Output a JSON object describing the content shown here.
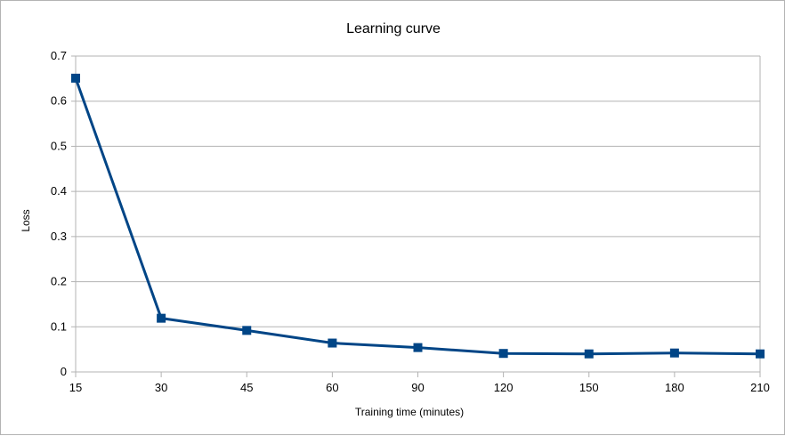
{
  "chart_data": {
    "type": "line",
    "title": "Learning curve",
    "xlabel": "Training time (minutes)",
    "ylabel": "Loss",
    "categories": [
      "15",
      "30",
      "45",
      "60",
      "90",
      "120",
      "150",
      "180",
      "210"
    ],
    "series": [
      {
        "values": [
          0.651,
          0.119,
          0.092,
          0.064,
          0.054,
          0.041,
          0.04,
          0.042,
          0.04
        ],
        "color": "#004586",
        "marker": "square"
      }
    ],
    "ylim": [
      0,
      0.7
    ],
    "yticks": [
      "0",
      "0.1",
      "0.2",
      "0.3",
      "0.4",
      "0.5",
      "0.6",
      "0.7"
    ],
    "grid": true,
    "legend": "none"
  }
}
